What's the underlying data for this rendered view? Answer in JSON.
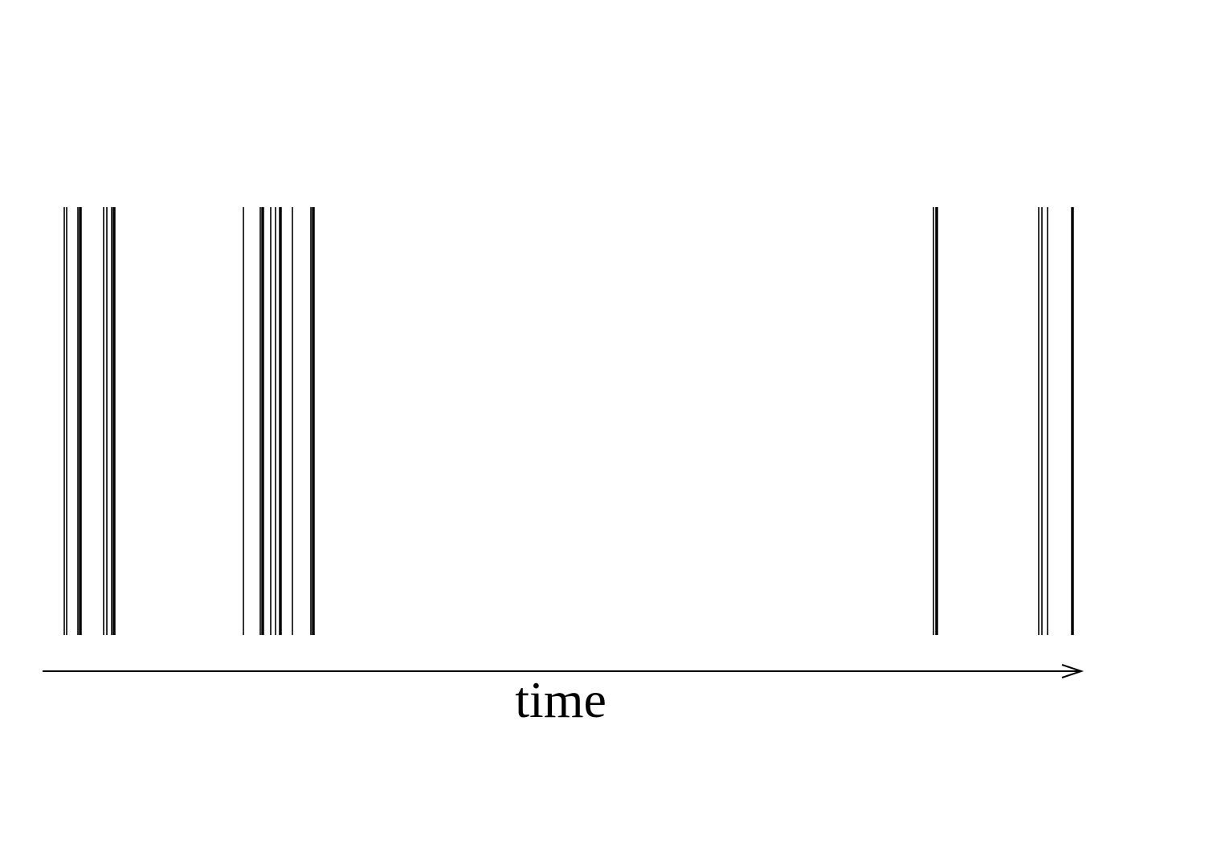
{
  "axis": {
    "label": "time",
    "direction": "right"
  },
  "colors": {
    "ink": "#000000",
    "background": "#ffffff"
  },
  "events": [
    {
      "t": 80,
      "weight": "thin"
    },
    {
      "t": 83,
      "weight": "thin"
    },
    {
      "t": 97,
      "weight": "thin"
    },
    {
      "t": 100,
      "weight": "thick"
    },
    {
      "t": 129,
      "weight": "thin"
    },
    {
      "t": 133,
      "weight": "thin"
    },
    {
      "t": 139,
      "weight": "thin"
    },
    {
      "t": 142,
      "weight": "thick"
    },
    {
      "t": 303,
      "weight": "thin"
    },
    {
      "t": 324,
      "weight": "thin"
    },
    {
      "t": 327,
      "weight": "thick"
    },
    {
      "t": 337,
      "weight": "thin"
    },
    {
      "t": 343,
      "weight": "thin"
    },
    {
      "t": 349,
      "weight": "thick"
    },
    {
      "t": 364,
      "weight": "thin"
    },
    {
      "t": 387,
      "weight": "thin"
    },
    {
      "t": 390,
      "weight": "thick"
    },
    {
      "t": 1162,
      "weight": "thin"
    },
    {
      "t": 1166,
      "weight": "thick"
    },
    {
      "t": 1293,
      "weight": "thin"
    },
    {
      "t": 1297,
      "weight": "thin"
    },
    {
      "t": 1304,
      "weight": "thin"
    },
    {
      "t": 1335,
      "weight": "thick"
    }
  ]
}
